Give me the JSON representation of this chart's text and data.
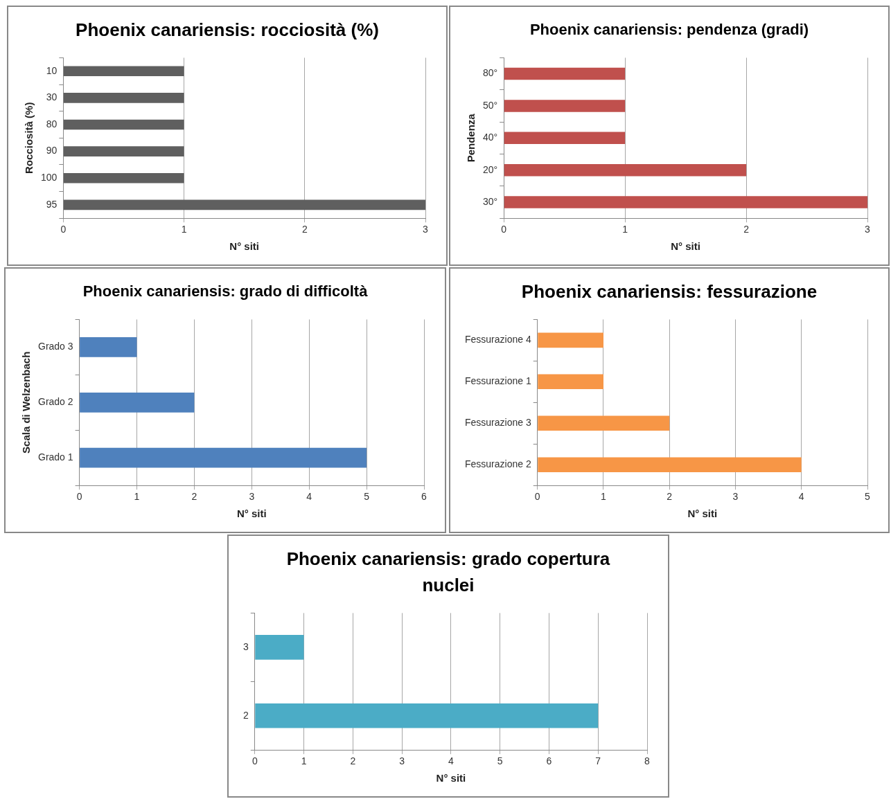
{
  "chart_data": [
    {
      "type": "bar",
      "orientation": "horizontal",
      "title": "Phoenix canariensis: rocciosità (%)",
      "xlabel": "N° siti",
      "ylabel": "Rocciosità (%)",
      "categories": [
        "10",
        "30",
        "80",
        "90",
        "100",
        "95"
      ],
      "values": [
        1,
        1,
        1,
        1,
        1,
        3
      ],
      "color": "#5f5f5f",
      "xlim": [
        0,
        3
      ],
      "xticks": [
        0,
        1,
        2,
        3
      ],
      "grid": "x",
      "legend": false
    },
    {
      "type": "bar",
      "orientation": "horizontal",
      "title": "Phoenix canariensis: pendenza (gradi)",
      "xlabel": "N° siti",
      "ylabel": "Pendenza",
      "categories": [
        "80°",
        "50°",
        "40°",
        "20°",
        "30°"
      ],
      "values": [
        1,
        1,
        1,
        2,
        3
      ],
      "color": "#c0504d",
      "xlim": [
        0,
        3
      ],
      "xticks": [
        0,
        1,
        2,
        3
      ],
      "grid": "x",
      "legend": false
    },
    {
      "type": "bar",
      "orientation": "horizontal",
      "title": "Phoenix canariensis: grado di difficoltà",
      "xlabel": "N° siti",
      "ylabel": "Scala di Welzenbach",
      "categories": [
        "Grado 3",
        "Grado 2",
        "Grado 1"
      ],
      "values": [
        1,
        2,
        5
      ],
      "color": "#4f81bd",
      "xlim": [
        0,
        6
      ],
      "xticks": [
        0,
        1,
        2,
        3,
        4,
        5,
        6
      ],
      "grid": "x",
      "legend": false
    },
    {
      "type": "bar",
      "orientation": "horizontal",
      "title": "Phoenix canariensis: fessurazione",
      "xlabel": "N° siti",
      "categories": [
        "Fessurazione 4",
        "Fessurazione 1",
        "Fessurazione 3",
        "Fessurazione 2"
      ],
      "values": [
        1,
        1,
        2,
        4
      ],
      "color": "#f79646",
      "xlim": [
        0,
        5
      ],
      "xticks": [
        0,
        1,
        2,
        3,
        4,
        5
      ],
      "grid": "x",
      "legend": false
    },
    {
      "type": "bar",
      "orientation": "horizontal",
      "title": "Phoenix canariensis: grado copertura nuclei",
      "xlabel": "N° siti",
      "categories": [
        "3",
        "2"
      ],
      "values": [
        1,
        7
      ],
      "color": "#4bacc6",
      "xlim": [
        0,
        8
      ],
      "xticks": [
        0,
        1,
        2,
        3,
        4,
        5,
        6,
        7,
        8
      ],
      "grid": "x",
      "legend": false
    }
  ]
}
